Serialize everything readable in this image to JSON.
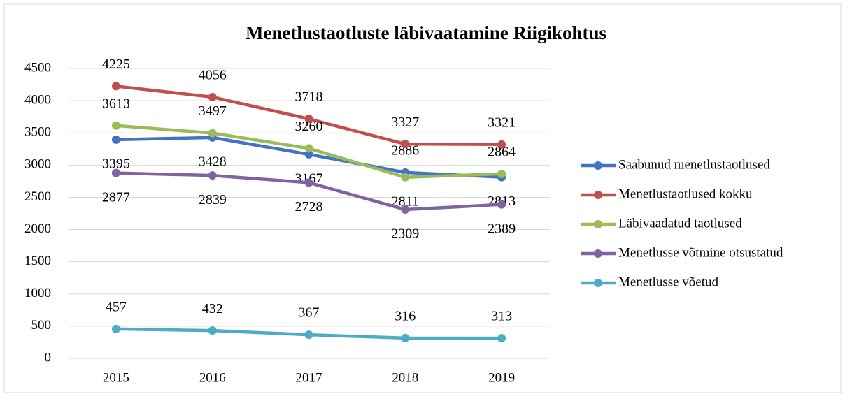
{
  "chart_data": {
    "type": "line",
    "title": "Menetlustaotluste läbivaatamine Riigikohtus",
    "categories": [
      "2015",
      "2016",
      "2017",
      "2018",
      "2019"
    ],
    "series": [
      {
        "name": "Saabunud menetlustaotlused",
        "color": "#4472c4",
        "values": [
          3395,
          3428,
          3167,
          2886,
          2813
        ]
      },
      {
        "name": "Menetlustaotlused kokku",
        "color": "#c0504d",
        "values": [
          4225,
          4056,
          3718,
          3327,
          3321
        ]
      },
      {
        "name": "Läbivaadatud taotlused",
        "color": "#9bbb59",
        "values": [
          3613,
          3497,
          3260,
          2811,
          2864
        ]
      },
      {
        "name": "Menetlusse võtmine otsustatud",
        "color": "#8064a2",
        "values": [
          2877,
          2839,
          2728,
          2309,
          2389
        ]
      },
      {
        "name": "Menetlusse võetud",
        "color": "#4bacc6",
        "values": [
          457,
          432,
          367,
          316,
          313
        ]
      }
    ],
    "ylim": [
      0,
      4500
    ],
    "yticks": [
      0,
      500,
      1000,
      1500,
      2000,
      2500,
      3000,
      3500,
      4000,
      4500
    ],
    "grid": true,
    "legend": "right"
  }
}
